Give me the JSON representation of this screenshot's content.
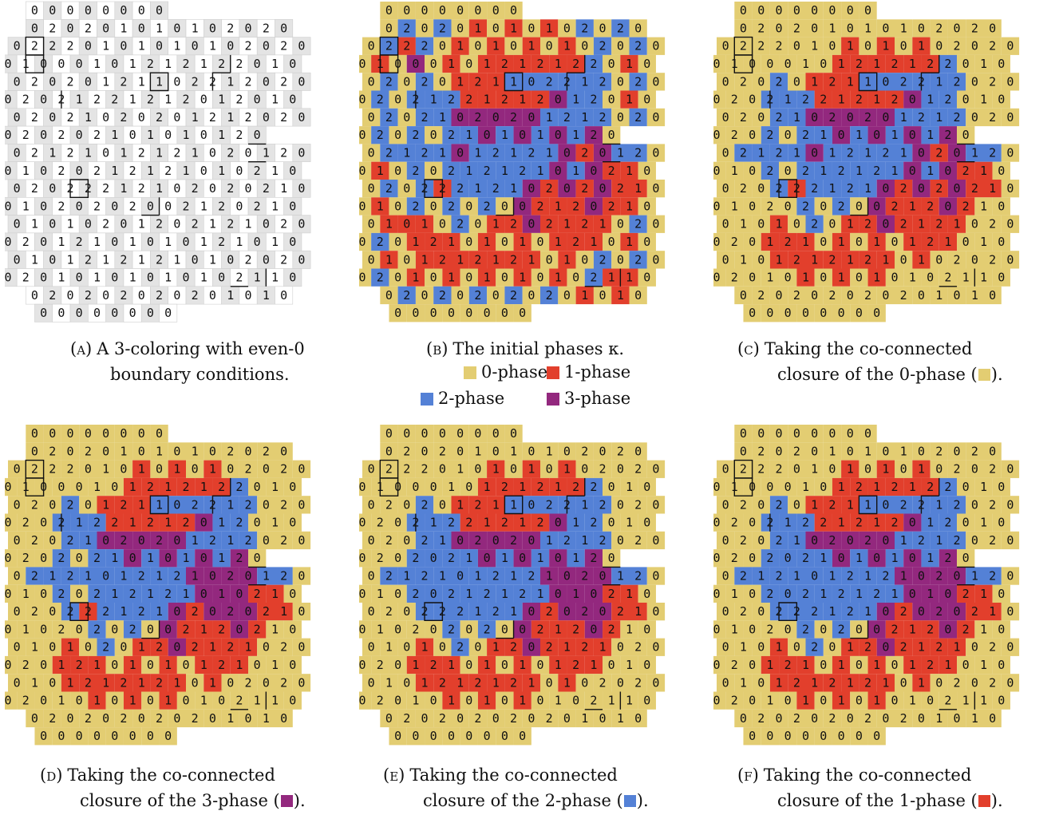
{
  "colors": {
    "phase_0": "#e3cd72",
    "phase_1": "#e23f2c",
    "phase_2": "#5481d6",
    "phase_3": "#93287e",
    "grid_checker": "#e4e4e4",
    "grid_line": "#cfcfcf"
  },
  "rows": [
    "   0 0 0 0 0 0 0 0",
    "   0 2 0 2 0 1 0 1 0 1 0 2 0 2 0",
    " 0 2 2 2 0 1 0 1 0 1 0 1 0 2 0 2 0",
    "0 1 0 0 0 1 0 1 2 1 2 1 2 2 0 1 0",
    " 0 2 0 2 0 1 2 1 1 0 2 2 1 2 0 2 0",
    "0 2 0 2 1 2 2 1 2 1 2 0 1 2 0 1 0",
    " 0 2 0 2 1 0 2 0 2 0 1 2 1 2 0 2 0",
    "0 2 0 2 0 2 1 0 1 0 1 0 1 2 0",
    " 0 2 1 2 1 0 1 2 1 2 1 0 2 0 1 2 0",
    "0 1 0 2 0 2 1 2 1 2 1 0 1 0 2 1 0",
    " 0 2 0 2 2 2 1 2 1 0 2 0 2 0 2 1 0",
    "0 1 0 2 0 2 0 2 0 0 2 1 2 0 2 1 0",
    " 0 1 0 1 0 2 0 1 2 0 2 1 2 1 0 2 0",
    "0 2 0 1 2 1 0 1 0 1 0 1 2 1 0 1 0",
    " 0 1 0 1 2 1 2 1 2 1 0 1 0 2 0 2 0",
    "0 2 0 1 0 1 0 1 0 1 0 1 0 2 1 1 0",
    "   0 2 0 2 0 2 0 2 0 2 0 1 0 1 0",
    "    0 0 0 0 0 0 0 0"
  ],
  "phase_maps": {
    "b": [
      "   0 0 0 0 0 0 0 0",
      "   0 2 0 2 0 1 0 1 0 1 0 2 0 2 0",
      " 0 2 1 2 0 1 0 1 0 1 0 1 0 2 0 2 0",
      "0 1 0 3 0 1 0 1 1 1 1 1 1 2 0 1 0",
      " 0 2 0 2 0 1 1 1 2 2 2 2 2 2 0 2 0",
      "0 2 0 2 2 2 1 1 1 1 1 3 2 2 0 1 0",
      " 0 2 0 2 2 3 3 3 3 3 2 2 2 2 0 2 0",
      "0 2 0 2 0 2 2 3 2 3 2 3 2 3 0",
      " 0 2 2 2 2 3 2 2 2 2 2 3 1 3 2 2 0",
      "0 1 0 2 0 2 2 2 2 2 2 3 2 3 1 1 0",
      " 0 2 0 2 1 2 2 2 2 3 1 3 1 3 1 1 0",
      "0 1 0 2 0 2 0 2 0 3 1 1 1 3 1 1 0",
      " 0 1 1 1 0 2 0 1 1 3 1 1 1 1 0 2 0",
      "0 2 0 1 1 1 0 1 0 1 0 1 1 1 0 1 0",
      " 0 1 0 1 1 1 1 1 1 1 0 1 0 2 0 2 0",
      "0 2 0 1 0 1 0 1 0 1 0 1 0 2 1 1 0",
      "   0 2 0 2 0 2 0 2 0 2 0 1 0 1 0",
      "    0 0 0 0 0 0 0 0"
    ],
    "c": [
      "   0 0 0 0 0 0 0 0",
      "   0 0 0 0 0 0 0 0 0 0 0 0 0 0 0",
      " 0 0 0 0 0 0 0 1 0 1 0 1 0 0 0 0 0",
      "0 0 0 0 0 0 0 1 1 1 1 1 1 2 0 0 0",
      " 0 0 0 2 0 1 1 1 2 2 2 2 2 2 0 0 0",
      "0 0 0 2 2 2 1 1 1 1 1 3 2 2 0 0 0",
      " 0 0 0 2 2 3 3 3 3 3 2 2 2 2 0 0 0",
      "0 0 0 2 0 2 2 3 2 3 2 3 2 3 0",
      " 0 2 2 2 2 3 2 2 2 2 2 3 1 3 2 2 0",
      "0 0 0 2 0 2 2 2 2 2 2 3 2 3 1 1 0",
      " 0 0 0 2 1 2 2 2 2 3 1 3 1 3 1 1 0",
      "0 0 0 0 0 2 0 2 0 3 1 1 1 3 1 0 0",
      " 0 0 0 1 0 2 0 1 1 3 1 1 1 1 0 0 0",
      "0 0 0 1 1 1 0 1 0 1 0 1 1 1 0 0 0",
      " 0 0 0 1 1 1 1 1 1 1 0 1 0 0 0 0 0",
      "0 0 0 0 0 1 0 1 0 1 0 0 0 0 0 0 0",
      "   0 0 0 0 0 0 0 0 0 0 0 0 0 0 0",
      "    0 0 0 0 0 0 0 0"
    ],
    "d": [
      "   0 0 0 0 0 0 0 0",
      "   0 0 0 0 0 0 0 0 0 0 0 0 0 0 0",
      " 0 0 0 0 0 0 0 1 0 1 0 1 0 0 0 0 0",
      "0 0 0 0 0 0 0 1 1 1 1 1 1 2 0 0 0",
      " 0 0 0 2 0 1 1 1 2 2 2 2 2 2 0 0 0",
      "0 0 0 2 2 2 1 1 1 1 1 3 2 2 0 0 0",
      " 0 0 0 2 2 3 3 3 3 3 2 2 2 2 0 0 0",
      "0 0 0 2 0 2 2 3 2 3 2 3 2 3 0",
      " 0 2 2 2 2 2 2 2 2 2 3 3 3 3 2 2 0",
      "0 0 0 2 0 2 2 2 2 2 2 3 3 3 1 1 0",
      " 0 0 0 2 1 2 2 2 2 3 1 3 3 3 1 1 0",
      "0 0 0 0 0 2 0 2 0 3 1 1 1 3 1 0 0",
      " 0 0 0 1 0 2 0 1 1 3 1 1 1 1 0 0 0",
      "0 0 0 1 1 1 0 1 0 1 0 1 1 1 0 0 0",
      " 0 0 0 1 1 1 1 1 1 1 0 1 0 0 0 0 0",
      "0 0 0 0 0 1 0 1 0 1 0 0 0 0 0 0 0",
      "   0 0 0 0 0 0 0 0 0 0 0 0 0 0 0",
      "    0 0 0 0 0 0 0 0"
    ],
    "e": [
      "   0 0 0 0 0 0 0 0",
      "   0 0 0 0 0 0 0 0 0 0 0 0 0 0 0",
      " 0 0 0 0 0 0 0 1 0 1 0 1 0 0 0 0 0",
      "0 0 0 0 0 0 0 1 1 1 1 1 1 2 0 0 0",
      " 0 0 0 2 0 1 1 1 2 2 2 2 2 2 0 0 0",
      "0 0 0 2 2 2 1 1 1 1 1 3 2 2 0 0 0",
      " 0 0 0 2 2 3 3 3 3 3 2 2 2 2 0 0 0",
      "0 0 0 2 2 2 2 3 2 3 2 3 2 3 0",
      " 0 2 2 2 2 2 2 2 2 2 3 3 3 3 2 2 0",
      "0 0 0 2 2 2 2 2 2 2 2 3 3 3 1 1 0",
      " 0 0 0 2 2 2 2 2 2 3 1 3 3 3 1 1 0",
      "0 0 0 0 0 2 0 2 0 3 1 1 1 3 1 0 0",
      " 0 0 0 1 0 2 0 1 1 3 1 1 1 1 0 0 0",
      "0 0 0 1 1 1 0 1 0 1 0 1 1 1 0 0 0",
      " 0 0 0 1 1 1 1 1 1 1 0 1 0 0 0 0 0",
      "0 0 0 0 0 1 0 1 0 1 0 0 0 0 0 0 0",
      "   0 0 0 0 0 0 0 0 0 0 0 0 0 0 0",
      "    0 0 0 0 0 0 0 0"
    ],
    "f": [
      "   0 0 0 0 0 0 0 0",
      "   0 0 0 0 0 0 0 0 0 0 0 0 0 0 0",
      " 0 0 0 0 0 0 0 1 0 1 0 1 0 0 0 0 0",
      "0 0 0 0 0 0 0 1 1 1 1 1 1 2 0 0 0",
      " 0 0 0 2 0 1 1 1 2 2 2 2 2 2 0 0 0",
      "0 0 0 2 2 2 1 1 1 1 1 3 2 2 0 0 0",
      " 0 0 0 2 2 3 3 3 3 3 2 2 2 2 0 0 0",
      "0 0 0 2 2 2 2 3 2 3 2 3 2 3 0",
      " 0 2 2 2 2 2 2 2 2 2 3 3 3 3 2 2 0",
      "0 0 0 2 2 2 2 2 2 2 2 3 3 3 1 1 0",
      " 0 0 0 2 2 2 2 2 2 3 1 3 3 3 1 1 0",
      "0 0 0 0 0 2 0 2 0 3 1 1 1 3 1 0 0",
      " 0 0 0 1 0 2 0 1 1 3 1 1 1 1 0 0 0",
      "0 0 0 1 1 1 0 1 0 1 0 1 1 1 0 0 0",
      " 0 0 0 1 1 1 1 1 1 1 0 1 0 0 0 0 0",
      "0 0 0 0 0 1 0 1 0 1 0 0 0 0 0 0 0",
      "   0 0 0 0 0 0 0 0 0 0 0 0 0 0 0",
      "    0 0 0 0 0 0 0 0"
    ]
  },
  "panels": [
    {
      "id": "a",
      "letter": "(a)",
      "line1": "A 3-coloring with even-0",
      "line2": "boundary conditions.",
      "swatch": null
    },
    {
      "id": "b",
      "letter": "(b)",
      "line1": "The initial phases κ.",
      "line2": "",
      "swatch": null
    },
    {
      "id": "c",
      "letter": "(c)",
      "line1": "Taking the co-connected",
      "line2": "closure of the 0-phase (",
      "swatch": "phase_0"
    },
    {
      "id": "d",
      "letter": "(d)",
      "line1": "Taking the co-connected",
      "line2": "closure of the 3-phase (",
      "swatch": "phase_3"
    },
    {
      "id": "e",
      "letter": "(e)",
      "line1": "Taking the co-connected",
      "line2": "closure of the 2-phase (",
      "swatch": "phase_2"
    },
    {
      "id": "f",
      "letter": "(f)",
      "line1": "Taking the co-connected",
      "line2": "closure of the 1-phase (",
      "swatch": "phase_1"
    }
  ],
  "legend": [
    {
      "label": "0-phase",
      "color": "phase_0"
    },
    {
      "label": "1-phase",
      "color": "phase_1"
    },
    {
      "label": "2-phase",
      "color": "phase_2"
    },
    {
      "label": "3-phase",
      "color": "phase_3"
    }
  ]
}
